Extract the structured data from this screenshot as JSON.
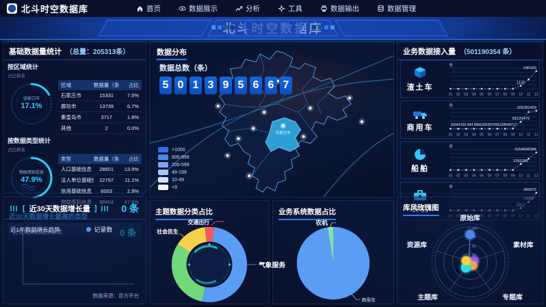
{
  "nav": {
    "logo_text": "北斗时空数据库",
    "items": [
      {
        "label": "首页",
        "icon": "home-icon"
      },
      {
        "label": "数据展示",
        "icon": "eye-icon"
      },
      {
        "label": "分析",
        "icon": "analysis-icon"
      },
      {
        "label": "工具",
        "icon": "tools-icon"
      },
      {
        "label": "数据输出",
        "icon": "output-icon"
      },
      {
        "label": "数据管理",
        "icon": "manage-icon"
      }
    ]
  },
  "banner": {
    "title": "北斗时空数据库"
  },
  "base_stats": {
    "title": "基础数据量统计",
    "total": "（总量：205313条）",
    "region": {
      "title": "按区域统计",
      "subtitle": "占比排名",
      "gauge_label": "张家口市",
      "gauge_value": "17.1%",
      "gauge_percent": 17.1,
      "headers": [
        "区域",
        "数据量（条）",
        "占比"
      ],
      "rows": [
        [
          "石家庄市",
          "15331",
          "7.5%"
        ],
        [
          "廊坊市",
          "13739",
          "6.7%"
        ],
        [
          "秦皇岛市",
          "3717",
          "1.8%"
        ],
        [
          "其他",
          "2",
          "0.0%"
        ]
      ]
    },
    "type": {
      "title": "按数据类型统计",
      "subtitle": "占比排名",
      "gauge_label": "物联感知信息",
      "gauge_value": "47.9%",
      "gauge_percent": 47.9,
      "headers": [
        "类型",
        "数据量（条）",
        "占比"
      ],
      "rows": [
        [
          "人口基础信息",
          "28601",
          "13.9%"
        ],
        [
          "法人单位基础信息",
          "22797",
          "11.1%"
        ],
        [
          "信用基础信息",
          "6003",
          "2.9%"
        ],
        [
          "物联感知信息",
          "98404",
          "47.9%"
        ]
      ]
    },
    "top_growth": {
      "title": "近30天数据增长最高的类型",
      "item": "过境视频数据资源库",
      "value": "0 条"
    }
  },
  "growth": {
    "title": "近30天数据增长量",
    "value": "0 条",
    "trend_title": "近1年数据增长趋势",
    "legend": "记录数",
    "source": "数据来源：官方平台"
  },
  "distribution": {
    "title": "数据分布",
    "counter_label": "数据总数（条）",
    "digits": [
      "5",
      "0",
      "1",
      "3",
      "9",
      "5",
      "6",
      "6",
      "7"
    ],
    "region_label": "石家庄市",
    "legend": [
      {
        "label": ">1000",
        "color": "#2f6fe4"
      },
      {
        "label": "600-999",
        "color": "#4f86ec"
      },
      {
        "label": "200-599",
        "color": "#7aa4f2"
      },
      {
        "label": "49-199",
        "color": "#a9c4f7"
      },
      {
        "label": "10-49",
        "color": "#d4e2fb"
      },
      {
        "label": "<9",
        "color": "#f2f6fe"
      }
    ]
  },
  "access": {
    "title": "业务数据接入量",
    "total": "（501190354 条）",
    "unit": "条",
    "months": [
      "01",
      "02",
      "03",
      "04",
      "05",
      "06",
      "07",
      "08",
      "09",
      "10",
      "11",
      "12"
    ],
    "rows": [
      {
        "name": "渣土车",
        "icon": "dump-truck-icon",
        "shape": [
          1,
          1,
          1,
          1,
          1,
          1,
          1,
          1,
          1,
          15,
          45,
          85
        ],
        "labels": [
          {
            "m": 9,
            "t": "1132"
          },
          {
            "m": 11,
            "t": "240320"
          }
        ]
      },
      {
        "name": "商用车",
        "icon": "commercial-vehicle-icon",
        "shape": [
          3,
          3,
          3,
          3,
          3,
          3,
          3,
          3,
          4,
          35,
          82,
          88
        ],
        "labels": [
          {
            "m": 0,
            "t": "10564159 384 9865395307295128648717",
            "cluster": true
          },
          {
            "m": 9,
            "t": "58120479"
          },
          {
            "m": 11,
            "t": "205282469"
          }
        ]
      },
      {
        "name": "船舶",
        "icon": "ship-icon",
        "shape": [
          2,
          2,
          2,
          2,
          2,
          2,
          2,
          2,
          2,
          30,
          55,
          85
        ],
        "labels": [
          {
            "m": 9,
            "t": "2393385"
          },
          {
            "m": 11,
            "t": "6254698384"
          }
        ]
      },
      {
        "name": "农机",
        "icon": "agri-machine-icon",
        "shape": [
          2,
          2,
          2,
          2,
          2,
          2,
          2,
          2,
          2,
          12,
          42,
          85
        ],
        "labels": [
          {
            "m": 9,
            "t": "3017"
          },
          {
            "m": 10,
            "t": "73088"
          },
          {
            "m": 11,
            "t": "266972"
          }
        ]
      }
    ]
  },
  "theme_pie": {
    "title": "主题数据分类占比",
    "type": "donut",
    "slices": [
      {
        "label": "交通出行",
        "percent": 4,
        "color": "#f05a5a"
      },
      {
        "label": "气象服务",
        "percent": 51,
        "color": "#5b9cf5"
      },
      {
        "label": "",
        "percent": 31,
        "color": "#6fd87a"
      },
      {
        "label": "社会民生",
        "percent": 14,
        "color": "#f5d04b"
      }
    ]
  },
  "biz_pie": {
    "title": "业务系统数据占比",
    "type": "pie",
    "slices": [
      {
        "label": "农机",
        "percent": 2.5,
        "color": "#7de6a0"
      },
      {
        "label": "商用车",
        "percent": 97.5,
        "color": "#5b9cf5"
      }
    ]
  },
  "radar": {
    "title": "库风玫瑰图",
    "type": "polar-bubble",
    "axes": [
      "原始库",
      "素材库",
      "专题库",
      "主题库",
      "资源库"
    ],
    "scale": [
      100,
      75,
      50,
      25
    ],
    "bubbles": [
      {
        "name": "原始库",
        "value": 78,
        "color": "#4f86e8"
      },
      {
        "name": "素材库",
        "value": 12,
        "color": "#9257f0"
      },
      {
        "name": "专题库",
        "value": 13,
        "color": "#f0a04a"
      },
      {
        "name": "主题库",
        "value": 20,
        "color": "#2ae0e8"
      },
      {
        "name": "资源库",
        "value": 12,
        "color": "#f5d43f"
      }
    ]
  }
}
